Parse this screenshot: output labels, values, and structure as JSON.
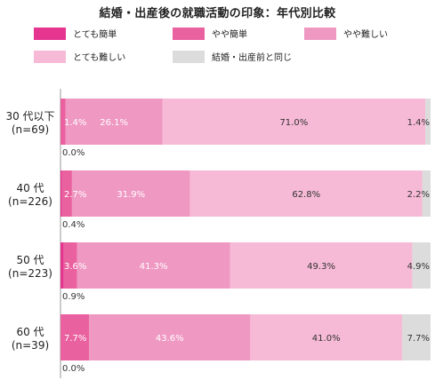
{
  "chart_data": {
    "type": "bar",
    "orientation": "horizontal-stacked",
    "title": "結婚・出産後の就職活動の印象：年代別比較",
    "categories": [
      [
        "30 代以下",
        "(n=69)"
      ],
      [
        "40 代",
        "(n=226)"
      ],
      [
        "50 代",
        "(n=223)"
      ],
      [
        "60 代",
        "(n=39)"
      ]
    ],
    "series": [
      {
        "name": "とても簡単",
        "color": "#e5358f",
        "values": [
          0.0,
          0.4,
          0.9,
          0.0
        ]
      },
      {
        "name": "やや簡単",
        "color": "#ea619f",
        "values": [
          1.4,
          2.7,
          3.6,
          7.7
        ]
      },
      {
        "name": "やや難しい",
        "color": "#ef98c2",
        "values": [
          26.1,
          31.9,
          41.3,
          43.6
        ]
      },
      {
        "name": "とても難しい",
        "color": "#f6bad6",
        "values": [
          71.0,
          62.8,
          49.3,
          41.0
        ]
      },
      {
        "name": "結婚・出産前と同じ",
        "color": "#dcdcdc",
        "values": [
          1.4,
          2.2,
          4.9,
          7.7
        ]
      }
    ],
    "value_labels": [
      [
        "0.0%",
        "1.4%",
        "26.1%",
        "71.0%",
        "1.4%"
      ],
      [
        "0.4%",
        "2.7%",
        "31.9%",
        "62.8%",
        "2.2%"
      ],
      [
        "0.9%",
        "3.6%",
        "41.3%",
        "49.3%",
        "4.9%"
      ],
      [
        "0.0%",
        "7.7%",
        "43.6%",
        "41.0%",
        "7.7%"
      ]
    ],
    "xlim": [
      0,
      100
    ],
    "legend_position": "top",
    "grid": false
  }
}
